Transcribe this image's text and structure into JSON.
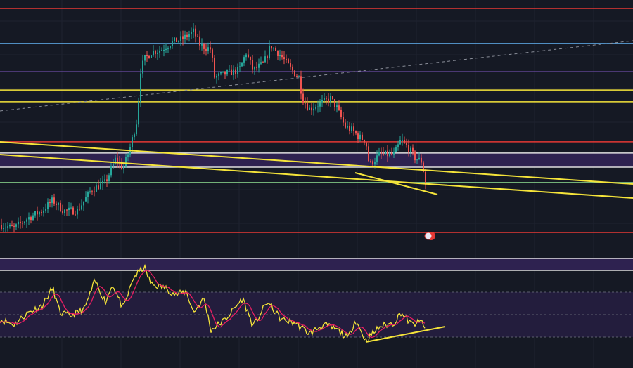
{
  "colors": {
    "background": "#151924",
    "grid": "#1f2330",
    "candle_up": "#26a69a",
    "candle_down": "#ef5350",
    "rsi_line": "#f5e43a",
    "rsi_ma": "#e91e63",
    "band_fill": "#2e2250",
    "trendline": "#f5e43a"
  },
  "chart_data": {
    "type": "candlestick",
    "title": "",
    "panes": [
      "price",
      "rsi"
    ],
    "grid": true,
    "price_close_path": [
      [
        0,
        12.3
      ],
      [
        20,
        11
      ],
      [
        40,
        15
      ],
      [
        60,
        17.8
      ],
      [
        75,
        21.9
      ],
      [
        90,
        17.8
      ],
      [
        110,
        17.8
      ],
      [
        130,
        26
      ],
      [
        150,
        28.8
      ],
      [
        165,
        38.4
      ],
      [
        175,
        34.2
      ],
      [
        185,
        42.5
      ],
      [
        195,
        53.4
      ],
      [
        200,
        72.6
      ],
      [
        205,
        76.7
      ],
      [
        215,
        79.5
      ],
      [
        230,
        80.8
      ],
      [
        245,
        83.6
      ],
      [
        260,
        84.9
      ],
      [
        275,
        87.7
      ],
      [
        285,
        82.2
      ],
      [
        300,
        80.8
      ],
      [
        305,
        69.9
      ],
      [
        320,
        71.2
      ],
      [
        340,
        72.6
      ],
      [
        350,
        79.5
      ],
      [
        360,
        72.6
      ],
      [
        375,
        75.3
      ],
      [
        385,
        82.2
      ],
      [
        400,
        78.1
      ],
      [
        415,
        72.6
      ],
      [
        425,
        69.9
      ],
      [
        430,
        61.6
      ],
      [
        440,
        57.5
      ],
      [
        460,
        60.3
      ],
      [
        470,
        61.6
      ],
      [
        480,
        57.5
      ],
      [
        490,
        50.7
      ],
      [
        500,
        49.3
      ],
      [
        510,
        46.6
      ],
      [
        520,
        45.2
      ],
      [
        525,
        35.6
      ],
      [
        540,
        39.7
      ],
      [
        560,
        39.7
      ],
      [
        570,
        45.2
      ],
      [
        580,
        42.5
      ],
      [
        590,
        38.4
      ],
      [
        600,
        37
      ],
      [
        605,
        28.2
      ]
    ],
    "horizontal_levels": [
      {
        "value": 96.7,
        "color": "#e53935"
      },
      {
        "value": 83,
        "color": "#64b5f6"
      },
      {
        "value": 72,
        "color": "#7e57c2"
      },
      {
        "value": 64.9,
        "color": "#f5e43a"
      },
      {
        "value": 60.3,
        "color": "#f5e43a"
      },
      {
        "value": 44.7,
        "color": "#e53935"
      },
      {
        "value": 40.3,
        "color": "#e0e0e0"
      },
      {
        "value": 34.8,
        "color": "#e0e0e0"
      },
      {
        "value": 28.8,
        "color": "#81c784"
      },
      {
        "value": 9.3,
        "color": "#e53935"
      }
    ],
    "rsi_path": [
      [
        0,
        45.6
      ],
      [
        20,
        41.3
      ],
      [
        40,
        51.9
      ],
      [
        60,
        58.1
      ],
      [
        75,
        73.8
      ],
      [
        85,
        51.9
      ],
      [
        100,
        48.8
      ],
      [
        120,
        55
      ],
      [
        135,
        80
      ],
      [
        150,
        61.3
      ],
      [
        160,
        76.9
      ],
      [
        175,
        55
      ],
      [
        190,
        83.1
      ],
      [
        205,
        92.5
      ],
      [
        215,
        76.9
      ],
      [
        235,
        73.8
      ],
      [
        250,
        67.5
      ],
      [
        265,
        70.6
      ],
      [
        275,
        51.9
      ],
      [
        290,
        64.4
      ],
      [
        300,
        36.3
      ],
      [
        320,
        45.6
      ],
      [
        345,
        64.4
      ],
      [
        360,
        39.4
      ],
      [
        380,
        61.3
      ],
      [
        400,
        45.6
      ],
      [
        420,
        42.5
      ],
      [
        440,
        33.1
      ],
      [
        460,
        41.3
      ],
      [
        480,
        36.3
      ],
      [
        495,
        28.8
      ],
      [
        505,
        45.6
      ],
      [
        520,
        26.9
      ],
      [
        540,
        39.4
      ],
      [
        560,
        42.5
      ],
      [
        570,
        51.9
      ],
      [
        585,
        41.3
      ],
      [
        600,
        43.8
      ],
      [
        605,
        37.5
      ]
    ],
    "rsi_levels": [
      70,
      50,
      30
    ]
  }
}
